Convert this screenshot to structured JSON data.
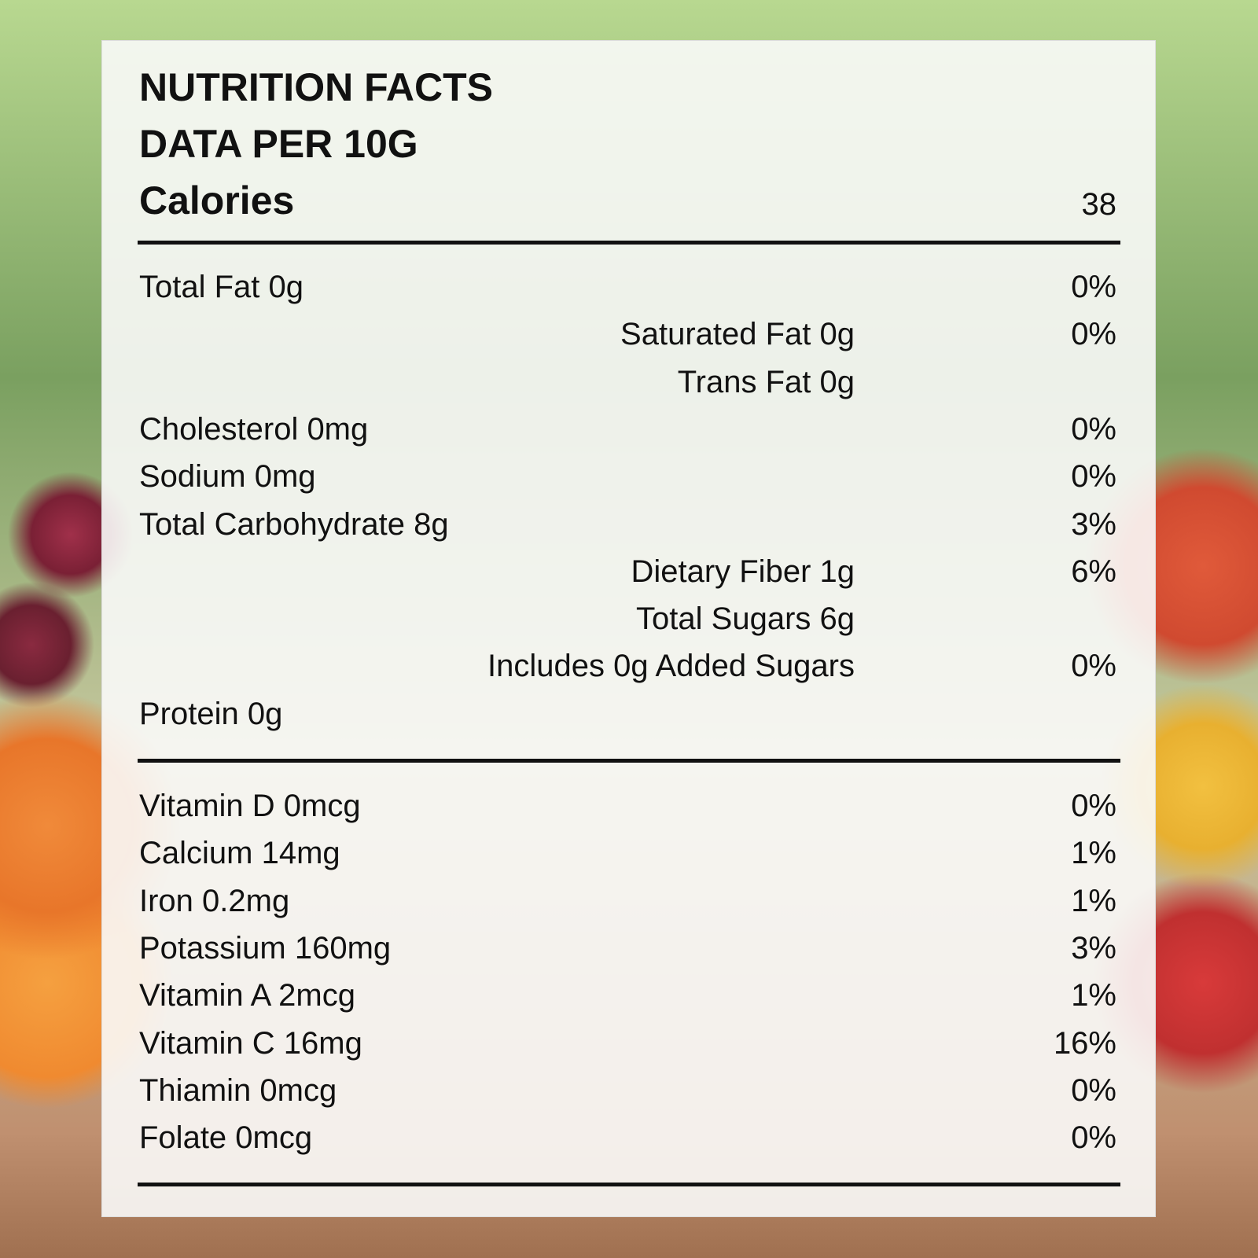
{
  "header": {
    "title": "NUTRITION FACTS",
    "subtitle": "DATA PER 10G",
    "calories_label": "Calories",
    "calories_value": "38"
  },
  "nutrients": [
    {
      "label": "Total Fat 0g",
      "dv": "0%",
      "indent": false
    },
    {
      "label": "Saturated Fat 0g",
      "dv": "0%",
      "indent": true
    },
    {
      "label": "Trans Fat 0g",
      "indent": true
    },
    {
      "label": "Cholesterol 0mg",
      "dv": "0%",
      "indent": false
    },
    {
      "label": "Sodium 0mg",
      "dv": "0%",
      "indent": false
    },
    {
      "label": "Total Carbohydrate 8g",
      "dv": "3%",
      "indent": false
    },
    {
      "label": "Dietary Fiber 1g",
      "dv": "6%",
      "indent": true
    },
    {
      "label": "Total Sugars 6g",
      "indent": true
    },
    {
      "label": "Includes 0g Added Sugars",
      "dv": "0%",
      "indent": true
    },
    {
      "label": "Protein 0g",
      "indent": false
    }
  ],
  "vitamins": [
    {
      "label": "Vitamin D 0mcg",
      "dv": "0%"
    },
    {
      "label": "Calcium 14mg",
      "dv": "1%"
    },
    {
      "label": "Iron 0.2mg",
      "dv": "1%"
    },
    {
      "label": "Potassium 160mg",
      "dv": "3%"
    },
    {
      "label": "Vitamin A 2mcg",
      "dv": "1%"
    },
    {
      "label": "Vitamin C 16mg",
      "dv": "16%"
    },
    {
      "label": "Thiamin 0mcg",
      "dv": "0%"
    },
    {
      "label": "Folate 0mcg",
      "dv": "0%"
    }
  ]
}
